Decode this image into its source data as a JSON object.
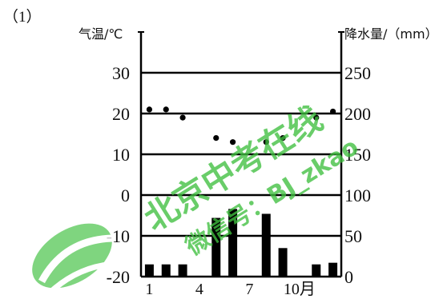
{
  "subfigure_label": "（1）",
  "watermark": {
    "line1": "北京中考在线",
    "line2": "微信号：BJ_zkao",
    "color": "#3fbf3f"
  },
  "chart_data": {
    "type": "bar+scatter",
    "left_axis": {
      "label": "气温/℃",
      "ticks": [
        "30",
        "20",
        "10",
        "0",
        "-10",
        "-20"
      ],
      "tick_values": [
        30,
        20,
        10,
        0,
        -10,
        -20
      ],
      "range": [
        -20,
        40
      ]
    },
    "right_axis": {
      "label": "降水量/（mm）",
      "ticks": [
        "250",
        "200",
        "150",
        "100",
        "50",
        "0"
      ],
      "tick_values": [
        250,
        200,
        150,
        100,
        50,
        0
      ],
      "range": [
        0,
        300
      ]
    },
    "x_axis": {
      "tick_labels": [
        "1",
        "4",
        "7",
        "10月"
      ],
      "tick_months": [
        1,
        4,
        7,
        10
      ]
    },
    "grid": true,
    "months": [
      1,
      2,
      3,
      4,
      5,
      6,
      7,
      8,
      9,
      10,
      11,
      12
    ],
    "precipitation_mm": [
      15,
      15,
      15,
      1,
      72,
      83,
      1,
      77,
      35,
      1,
      15,
      17
    ],
    "temperature_c": [
      21,
      21,
      19,
      null,
      14,
      13,
      null,
      13,
      14,
      null,
      19,
      20.5
    ],
    "bar_color": "#000000",
    "point_color": "#000000"
  }
}
